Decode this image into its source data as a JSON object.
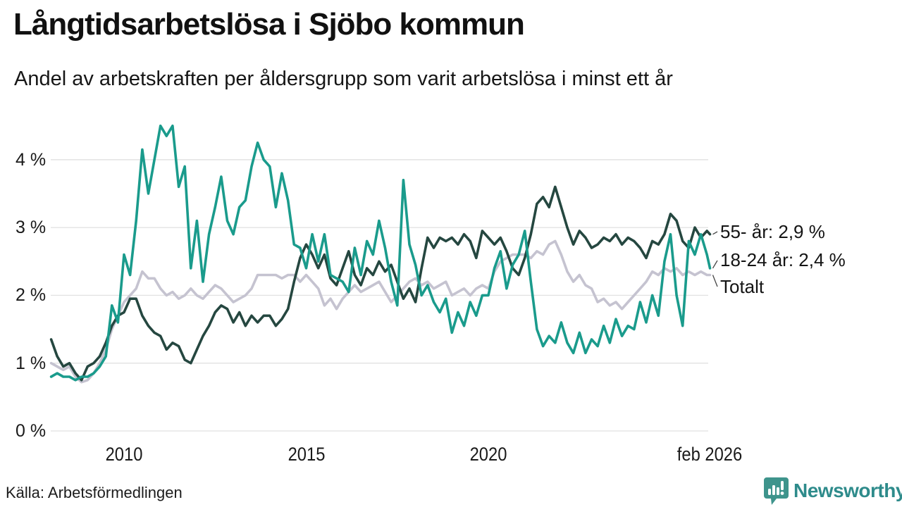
{
  "header": {
    "title": "Långtidsarbetslösa i Sjöbo kommun",
    "subtitle": "Andel av arbetskraften per åldersgrupp som varit arbetslösa i minst ett år"
  },
  "footer": {
    "source": "Källa: Arbetsförmedlingen",
    "logo_text": "Newsworthy",
    "logo_icon": "bar-chart-speech-bubble-icon",
    "logo_color": "#3e948c",
    "logo_text_color": "#2e8b8b"
  },
  "colors": {
    "grid": "#e1e1e1",
    "connector": "#444444",
    "text": "#151515"
  },
  "chart_data": {
    "type": "line",
    "title": "Långtidsarbetslösa i Sjöbo kommun",
    "subtitle": "Andel av arbetskraften per åldersgrupp som varit arbetslösa i minst ett år",
    "xlabel": "",
    "ylabel": "",
    "ylim": [
      0,
      4.75
    ],
    "grid": "horizontal",
    "legend_position": "right-end-labels",
    "x_start": 2008.0,
    "x_step": 0.1666667,
    "x_end": 2026.083,
    "x_ticks": [
      {
        "t": 2010,
        "label": "2010"
      },
      {
        "t": 2015,
        "label": "2015"
      },
      {
        "t": 2020,
        "label": "2020"
      },
      {
        "t": 2026.083,
        "label": "feb 2026"
      }
    ],
    "y_ticks": [
      {
        "value": 0,
        "label": "0 %"
      },
      {
        "value": 1,
        "label": "1 %"
      },
      {
        "value": 2,
        "label": "2 %"
      },
      {
        "value": 3,
        "label": "3 %"
      },
      {
        "value": 4,
        "label": "4 %"
      }
    ],
    "series": [
      {
        "name": "55- år",
        "end_label": "55- år: 2,9 %",
        "last_value": "2,9 %",
        "color": "#254740",
        "values": [
          1.35,
          1.1,
          0.95,
          1.0,
          0.85,
          0.75,
          0.95,
          1.0,
          1.1,
          1.3,
          1.55,
          1.7,
          1.75,
          1.95,
          1.95,
          1.7,
          1.55,
          1.45,
          1.4,
          1.2,
          1.3,
          1.25,
          1.05,
          1.0,
          1.2,
          1.4,
          1.55,
          1.75,
          1.85,
          1.8,
          1.6,
          1.75,
          1.55,
          1.7,
          1.6,
          1.7,
          1.7,
          1.55,
          1.65,
          1.8,
          2.2,
          2.55,
          2.75,
          2.6,
          2.4,
          2.6,
          2.25,
          2.15,
          2.4,
          2.65,
          2.3,
          2.15,
          2.4,
          2.3,
          2.5,
          2.35,
          2.45,
          2.2,
          1.95,
          2.1,
          1.9,
          2.4,
          2.85,
          2.7,
          2.85,
          2.8,
          2.85,
          2.75,
          2.9,
          2.8,
          2.55,
          2.95,
          2.85,
          2.75,
          2.85,
          2.65,
          2.4,
          2.3,
          2.55,
          2.9,
          3.35,
          3.45,
          3.3,
          3.6,
          3.3,
          3.0,
          2.75,
          2.95,
          2.85,
          2.7,
          2.75,
          2.85,
          2.8,
          2.9,
          2.75,
          2.85,
          2.8,
          2.7,
          2.55,
          2.8,
          2.75,
          2.9,
          3.2,
          3.1,
          2.8,
          2.7,
          3.0,
          2.85,
          2.95,
          2.9
        ]
      },
      {
        "name": "18-24 år",
        "end_label": "18-24 år: 2,4 %",
        "last_value": "2,4 %",
        "color": "#1a9b8c",
        "values": [
          0.8,
          0.85,
          0.8,
          0.8,
          0.75,
          0.8,
          0.8,
          0.85,
          0.95,
          1.1,
          1.85,
          1.6,
          2.6,
          2.3,
          3.1,
          4.15,
          3.5,
          4.0,
          4.5,
          4.35,
          4.5,
          3.6,
          3.9,
          2.4,
          3.1,
          2.2,
          2.9,
          3.3,
          3.75,
          3.1,
          2.9,
          3.3,
          3.4,
          3.9,
          4.25,
          4.0,
          3.9,
          3.3,
          3.8,
          3.4,
          2.75,
          2.7,
          2.4,
          2.9,
          2.5,
          2.9,
          2.3,
          2.25,
          2.2,
          2.05,
          2.7,
          2.3,
          2.8,
          2.6,
          3.1,
          2.7,
          2.2,
          1.85,
          3.7,
          2.75,
          2.45,
          2.0,
          2.15,
          1.9,
          1.75,
          1.95,
          1.45,
          1.75,
          1.55,
          1.9,
          1.7,
          2.0,
          2.0,
          2.4,
          2.65,
          2.1,
          2.45,
          2.6,
          2.95,
          2.2,
          1.5,
          1.25,
          1.4,
          1.3,
          1.6,
          1.3,
          1.15,
          1.45,
          1.15,
          1.35,
          1.25,
          1.55,
          1.3,
          1.65,
          1.4,
          1.55,
          1.5,
          1.9,
          1.6,
          2.0,
          1.7,
          2.5,
          2.9,
          2.0,
          1.55,
          2.8,
          2.6,
          2.9,
          2.6,
          2.4
        ]
      },
      {
        "name": "Totalt",
        "end_label": "Totalt",
        "last_value": "",
        "color": "#c5c3d0",
        "values": [
          1.0,
          0.95,
          0.9,
          0.95,
          0.8,
          0.72,
          0.75,
          0.85,
          1.0,
          1.2,
          1.5,
          1.7,
          1.9,
          2.0,
          2.1,
          2.35,
          2.25,
          2.25,
          2.1,
          2.0,
          2.05,
          1.95,
          2.0,
          2.1,
          2.0,
          1.95,
          2.05,
          2.15,
          2.1,
          2.0,
          1.9,
          1.95,
          2.0,
          2.1,
          2.3,
          2.3,
          2.3,
          2.3,
          2.25,
          2.3,
          2.3,
          2.2,
          2.3,
          2.2,
          2.1,
          1.85,
          1.95,
          1.8,
          1.95,
          2.05,
          2.15,
          2.05,
          2.1,
          2.15,
          2.2,
          2.05,
          1.9,
          2.0,
          2.1,
          2.2,
          2.25,
          2.15,
          2.2,
          2.1,
          2.15,
          2.2,
          2.0,
          2.05,
          2.1,
          2.0,
          2.1,
          2.15,
          2.1,
          2.35,
          2.5,
          2.55,
          2.6,
          2.6,
          2.6,
          2.55,
          2.65,
          2.6,
          2.75,
          2.8,
          2.6,
          2.35,
          2.2,
          2.3,
          2.15,
          2.1,
          1.9,
          1.95,
          1.85,
          1.9,
          1.8,
          1.9,
          2.0,
          2.1,
          2.2,
          2.35,
          2.3,
          2.4,
          2.35,
          2.4,
          2.3,
          2.35,
          2.3,
          2.35,
          2.3,
          2.3
        ]
      }
    ]
  }
}
